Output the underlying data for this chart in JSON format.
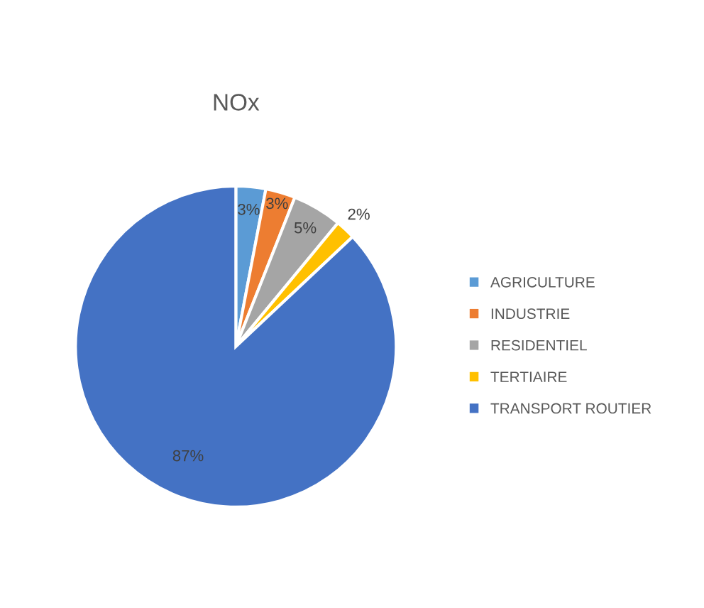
{
  "chart_data": {
    "type": "pie",
    "title": "NOx",
    "categories": [
      "AGRICULTURE",
      "INDUSTRIE",
      "RESIDENTIEL",
      "TERTIAIRE",
      "TRANSPORT ROUTIER"
    ],
    "values": [
      3,
      3,
      5,
      2,
      87
    ],
    "colors": [
      "#5b9bd5",
      "#ed7d31",
      "#a5a5a5",
      "#ffc000",
      "#4472c4"
    ],
    "value_labels": [
      "3%",
      "3%",
      "5%",
      "2%",
      "87%"
    ],
    "legend": "right"
  }
}
